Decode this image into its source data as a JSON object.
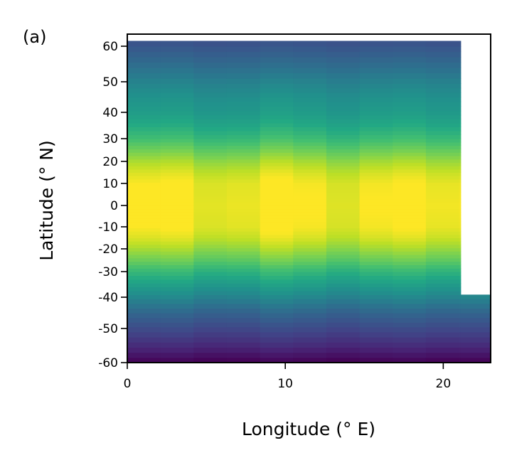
{
  "panel_label": "(a)",
  "chart_data": {
    "type": "heatmap",
    "title": "",
    "xlabel": "Longitude (° E)",
    "ylabel": "Latitude (° N)",
    "xlim": [
      0,
      23
    ],
    "ylim": [
      -60,
      62
    ],
    "x_scale": "linear",
    "y_scale": "stretched toward the equator (tick spacing compressed near 0)",
    "x_ticks": [
      {
        "value": 0,
        "label": "0"
      },
      {
        "value": 10,
        "label": "10"
      },
      {
        "value": 20,
        "label": "20"
      }
    ],
    "y_ticks": [
      {
        "value": 60,
        "label": "60"
      },
      {
        "value": 50,
        "label": "50"
      },
      {
        "value": 40,
        "label": "40"
      },
      {
        "value": 30,
        "label": "30"
      },
      {
        "value": 20,
        "label": "20"
      },
      {
        "value": 10,
        "label": "10"
      },
      {
        "value": 0,
        "label": "0"
      },
      {
        "value": -10,
        "label": "-10"
      },
      {
        "value": -20,
        "label": "-20"
      },
      {
        "value": -30,
        "label": "-30"
      },
      {
        "value": -40,
        "label": "-40"
      },
      {
        "value": -50,
        "label": "-50"
      },
      {
        "value": -60,
        "label": "-60"
      }
    ],
    "grid": false,
    "colormap": "viridis",
    "data_extent": {
      "main_region": {
        "lon": [
          0,
          21.1
        ],
        "lat": [
          -60,
          61
        ]
      },
      "right_region": {
        "lon": [
          21.1,
          23
        ],
        "lat": [
          -60,
          -39
        ]
      }
    },
    "value_profile_by_latitude": [
      {
        "lat": -60,
        "value": 0.0
      },
      {
        "lat": -55,
        "value": 0.12
      },
      {
        "lat": -50,
        "value": 0.22
      },
      {
        "lat": -45,
        "value": 0.32
      },
      {
        "lat": -40,
        "value": 0.45
      },
      {
        "lat": -35,
        "value": 0.55
      },
      {
        "lat": -30,
        "value": 0.65
      },
      {
        "lat": -25,
        "value": 0.76
      },
      {
        "lat": -20,
        "value": 0.85
      },
      {
        "lat": -15,
        "value": 0.93
      },
      {
        "lat": -10,
        "value": 0.98
      },
      {
        "lat": 0,
        "value": 1.0
      },
      {
        "lat": 10,
        "value": 0.98
      },
      {
        "lat": 15,
        "value": 0.93
      },
      {
        "lat": 20,
        "value": 0.86
      },
      {
        "lat": 25,
        "value": 0.77
      },
      {
        "lat": 30,
        "value": 0.68
      },
      {
        "lat": 35,
        "value": 0.6
      },
      {
        "lat": 40,
        "value": 0.54
      },
      {
        "lat": 45,
        "value": 0.5
      },
      {
        "lat": 50,
        "value": 0.44
      },
      {
        "lat": 55,
        "value": 0.35
      },
      {
        "lat": 61,
        "value": 0.25
      }
    ]
  }
}
